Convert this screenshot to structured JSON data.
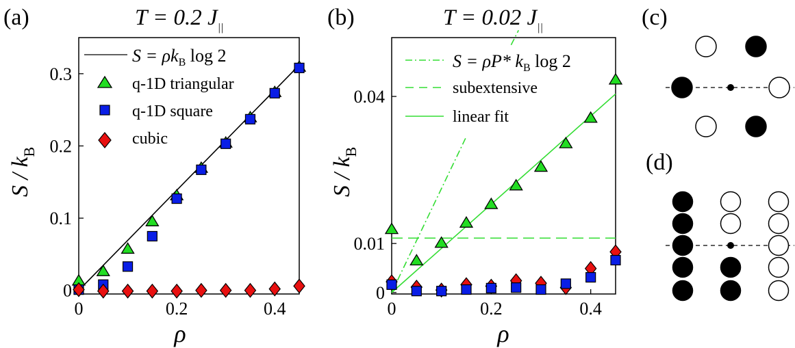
{
  "panels": {
    "a": {
      "label": "(a)",
      "title_main": "T = 0.2 J",
      "title_sub": "||"
    },
    "b": {
      "label": "(b)",
      "title_main": "T = 0.02 J",
      "title_sub": "||"
    },
    "c": {
      "label": "(c)"
    },
    "d": {
      "label": "(d)"
    }
  },
  "chart_data": [
    {
      "panel": "a",
      "type": "scatter",
      "xlabel": "ρ",
      "ylabel_main": "S / k",
      "ylabel_sub": "B",
      "xlim": [
        0,
        0.45
      ],
      "ylim": [
        -0.005,
        0.35
      ],
      "xticks": [
        0,
        0.2,
        0.4
      ],
      "xtick_labels": [
        "0",
        "0.2",
        "0.4"
      ],
      "yticks": [
        0,
        0.1,
        0.2,
        0.3
      ],
      "ytick_labels": [
        "0",
        "0.1",
        "0.2",
        "0.3"
      ],
      "legend_position": "top-left",
      "lines": [
        {
          "name": "S = ρk_B log 2",
          "color": "#000000",
          "style": "solid",
          "x": [
            0,
            0.45
          ],
          "y": [
            0,
            0.3119
          ]
        }
      ],
      "series": [
        {
          "name": "q-1D triangular",
          "marker": "triangle",
          "color": "#22dd22",
          "x": [
            0,
            0.05,
            0.1,
            0.15,
            0.2,
            0.25,
            0.3,
            0.35,
            0.4,
            0.45
          ],
          "y": [
            0.014,
            0.027,
            0.058,
            0.096,
            0.132,
            0.17,
            0.205,
            0.24,
            0.275,
            0.31
          ]
        },
        {
          "name": "q-1D square",
          "marker": "square",
          "color": "#0a1ee6",
          "x": [
            0,
            0.05,
            0.1,
            0.15,
            0.2,
            0.25,
            0.3,
            0.35,
            0.4,
            0.45
          ],
          "y": [
            0.001,
            0.008,
            0.033,
            0.075,
            0.127,
            0.167,
            0.203,
            0.237,
            0.273,
            0.308
          ]
        },
        {
          "name": "cubic",
          "marker": "diamond",
          "color": "#e81010",
          "x": [
            0,
            0.05,
            0.1,
            0.15,
            0.2,
            0.25,
            0.3,
            0.35,
            0.4,
            0.45
          ],
          "y": [
            0.001,
            -0.001,
            -0.001,
            -0.001,
            -0.001,
            0.0,
            0.0,
            0.0,
            0.002,
            0.006
          ]
        }
      ],
      "legend_labels": [
        {
          "text": "S = ρk",
          "sub": "B",
          "tail": " log 2"
        },
        {
          "text": "q-1D triangular"
        },
        {
          "text": "q-1D square"
        },
        {
          "text": "cubic"
        }
      ]
    },
    {
      "panel": "b",
      "type": "scatter",
      "xlabel": "ρ",
      "ylabel_main": "S / k",
      "ylabel_sub": "B",
      "xlim": [
        0,
        0.45
      ],
      "ylim": [
        -0.0003,
        0.052
      ],
      "xticks": [
        0,
        0.2,
        0.4
      ],
      "xtick_labels": [
        "0",
        "0.2",
        "0.4"
      ],
      "yticks": [
        0,
        0.01,
        0.04
      ],
      "ytick_labels": [
        "0",
        "0.01",
        "0.04"
      ],
      "legend_position": "top-right",
      "lines": [
        {
          "name": "S = ρP* k_B log 2",
          "color": "#33dd33",
          "style": "dashdot",
          "x": [
            0,
            0.15
          ],
          "y": [
            0,
            0.0318
          ]
        },
        {
          "name": "S = ρP* k_B log 2 (upper)",
          "color": "#33dd33",
          "style": "dashdot",
          "x": [
            0.24,
            0.255
          ],
          "y": [
            0.0505,
            0.0535
          ]
        },
        {
          "name": "subextensive",
          "color": "#33dd33",
          "style": "dashed",
          "x": [
            0,
            0.45
          ],
          "y": [
            0.0111,
            0.0111
          ]
        },
        {
          "name": "linear fit",
          "color": "#33dd33",
          "style": "solid",
          "x": [
            0,
            0.45
          ],
          "y": [
            0,
            0.0405
          ]
        }
      ],
      "series": [
        {
          "name": "triangular",
          "marker": "triangle",
          "color": "#22dd22",
          "x": [
            0,
            0.05,
            0.1,
            0.15,
            0.2,
            0.25,
            0.3,
            0.35,
            0.4,
            0.45
          ],
          "y": [
            0.013,
            0.0066,
            0.0102,
            0.0143,
            0.0181,
            0.0219,
            0.0257,
            0.0305,
            0.0357,
            0.0435
          ]
        },
        {
          "name": "cubic",
          "marker": "diamond",
          "color": "#e81010",
          "x": [
            0,
            0.05,
            0.1,
            0.15,
            0.2,
            0.25,
            0.3,
            0.35,
            0.4,
            0.45
          ],
          "y": [
            0.0022,
            0.0011,
            0.0005,
            0.0016,
            0.0013,
            0.0024,
            0.0019,
            0.001,
            0.0049,
            0.0083
          ]
        },
        {
          "name": "square",
          "marker": "square",
          "color": "#0a1ee6",
          "x": [
            0,
            0.05,
            0.1,
            0.15,
            0.2,
            0.25,
            0.3,
            0.35,
            0.4,
            0.45
          ],
          "y": [
            0.0016,
            0.0003,
            0.0003,
            0.0006,
            0.0009,
            0.001,
            0.0006,
            0.0018,
            0.0031,
            0.0066
          ]
        }
      ],
      "legend_labels": [
        {
          "text": "S = ρP* k",
          "sub": "B",
          "tail": " log 2"
        },
        {
          "text": "subextensive"
        },
        {
          "text": "linear fit"
        }
      ]
    }
  ],
  "diagrams": {
    "c": {
      "rows": [
        [
          "open",
          "filled"
        ],
        [
          "filled",
          "open"
        ],
        [
          "open",
          "filled"
        ]
      ]
    },
    "d": {
      "columns": [
        [
          "filled",
          "filled",
          "filled",
          "filled",
          "filled"
        ],
        [
          "open",
          "open",
          "center",
          "filled",
          "filled"
        ],
        [
          "open",
          "open",
          "open",
          "open",
          "open"
        ]
      ]
    }
  },
  "colors": {
    "triangle": "#22dd22",
    "square": "#0a1ee6",
    "diamond": "#e81010",
    "fit_green": "#33dd33"
  }
}
